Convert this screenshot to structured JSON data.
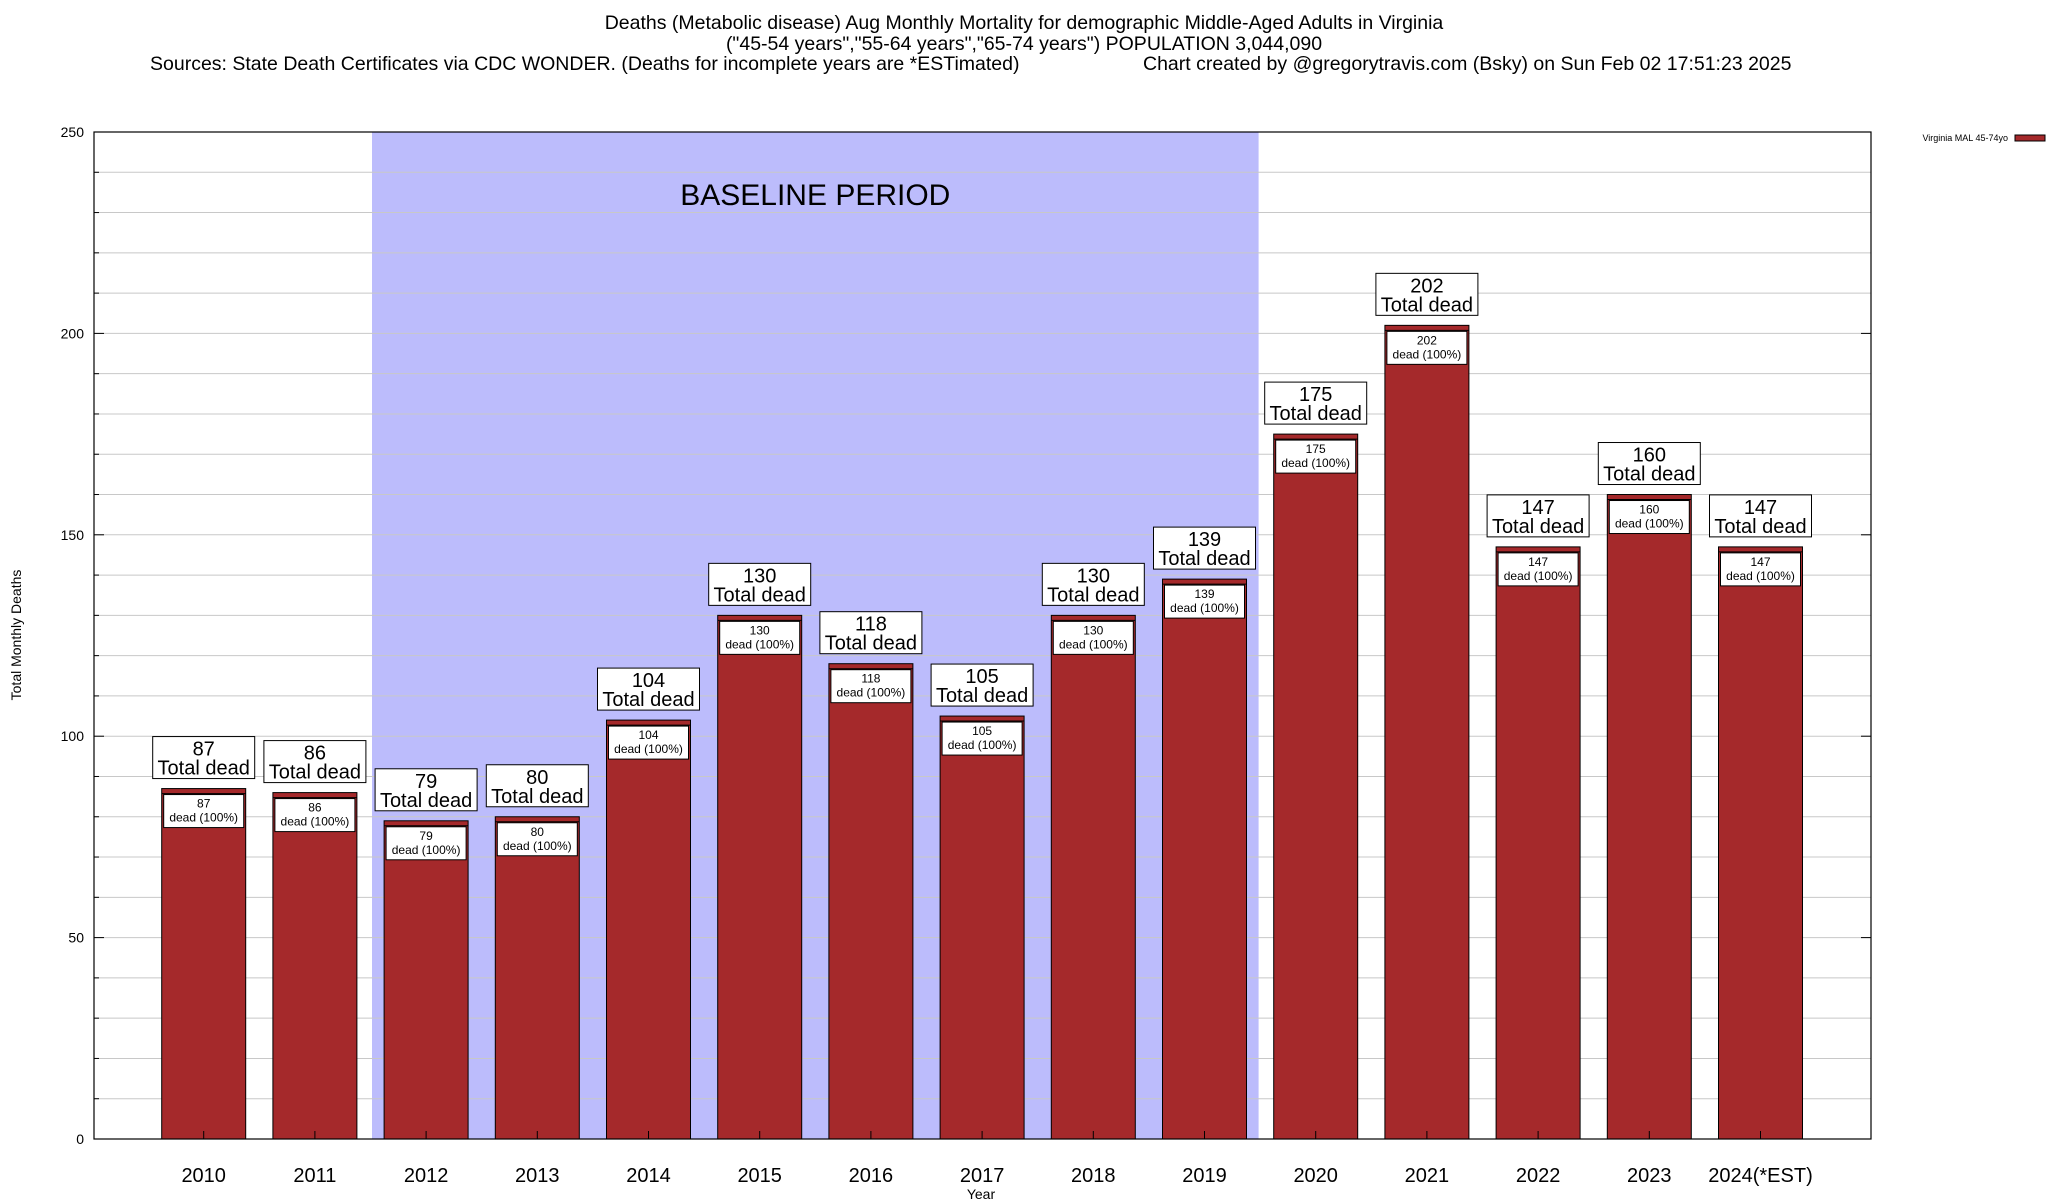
{
  "header": {
    "title_line1": "Deaths (Metabolic disease) Aug Monthly Mortality for demographic Middle-Aged Adults in Virginia",
    "title_line2": "(\"45-54 years\",\"55-64 years\",\"65-74 years\") POPULATION 3,044,090",
    "sources": "Sources: State Death Certificates via CDC WONDER. (Deaths for incomplete years are *ESTimated)",
    "credit": "Chart created by @gregorytravis.com (Bsky) on Sun Feb 02 17:51:23 2025"
  },
  "chart_data": {
    "type": "bar",
    "xlabel": "Year",
    "ylabel": "Total Monthly Deaths",
    "ylim": [
      0,
      250
    ],
    "yticks": [
      0,
      50,
      100,
      150,
      200,
      250
    ],
    "grid": true,
    "legend_position": "top-right",
    "categories": [
      "2010",
      "2011",
      "2012",
      "2013",
      "2014",
      "2015",
      "2016",
      "2017",
      "2018",
      "2019",
      "2020",
      "2021",
      "2022",
      "2023",
      "2024(*EST)"
    ],
    "series": [
      {
        "name": "Virginia MAL 45-74yo",
        "color": "#a5292b",
        "values": [
          87,
          86,
          79,
          80,
          104,
          130,
          118,
          105,
          130,
          139,
          175,
          202,
          147,
          160,
          147
        ]
      }
    ],
    "top_label_suffix": "Total dead",
    "inner_label_suffix": "dead (100%)",
    "baseline_period": {
      "label": "BASELINE PERIOD",
      "from_category": "2012",
      "to_category": "2019",
      "color": "#bcbcfc"
    }
  }
}
